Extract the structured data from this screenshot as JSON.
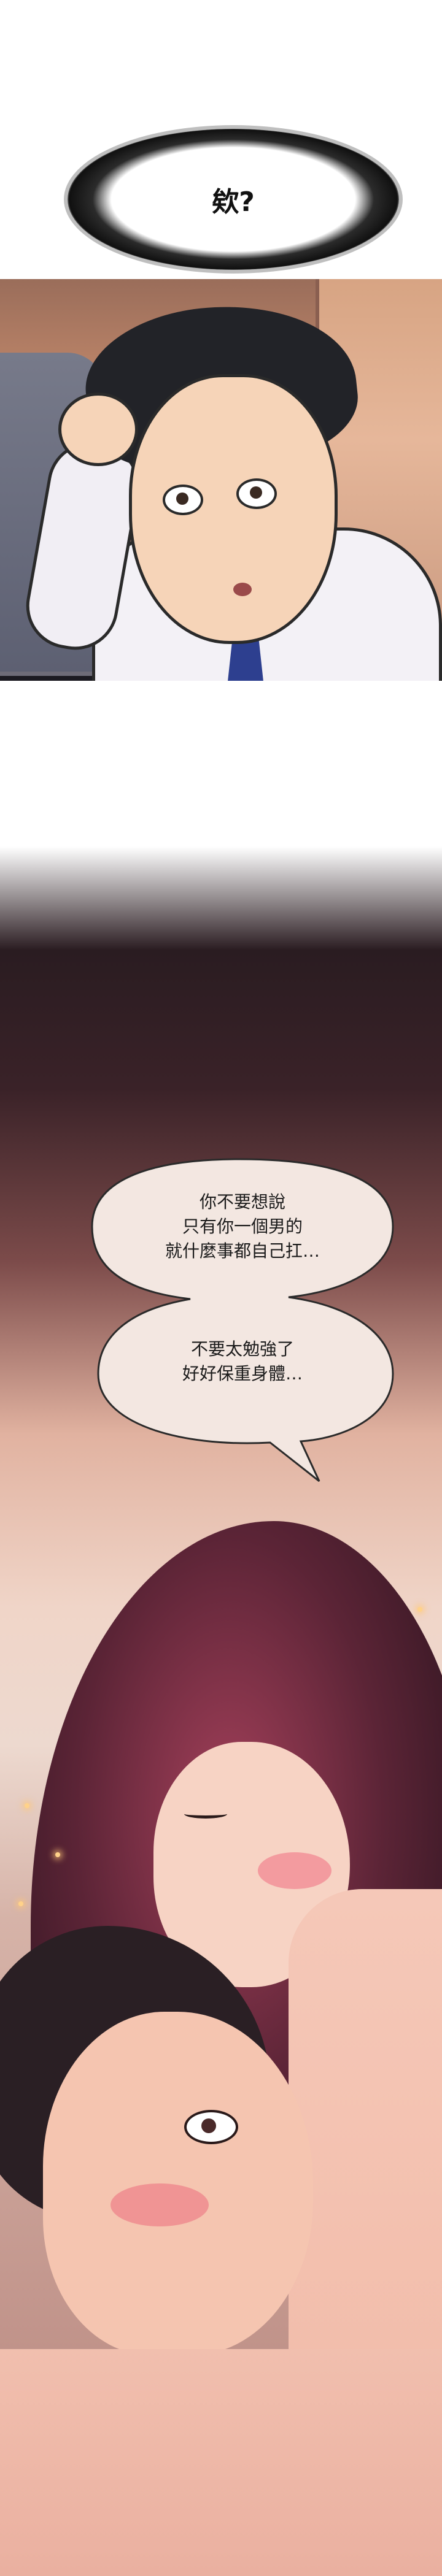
{
  "panel_top": {
    "shout_text": "欸?"
  },
  "panel_bottom": {
    "speech_block_1": [
      "你不要想說",
      "只有你一個男的",
      "就什麼事都自己扛…"
    ],
    "speech_block_2": [
      "不要太勉強了",
      "好好保重身體…"
    ]
  }
}
